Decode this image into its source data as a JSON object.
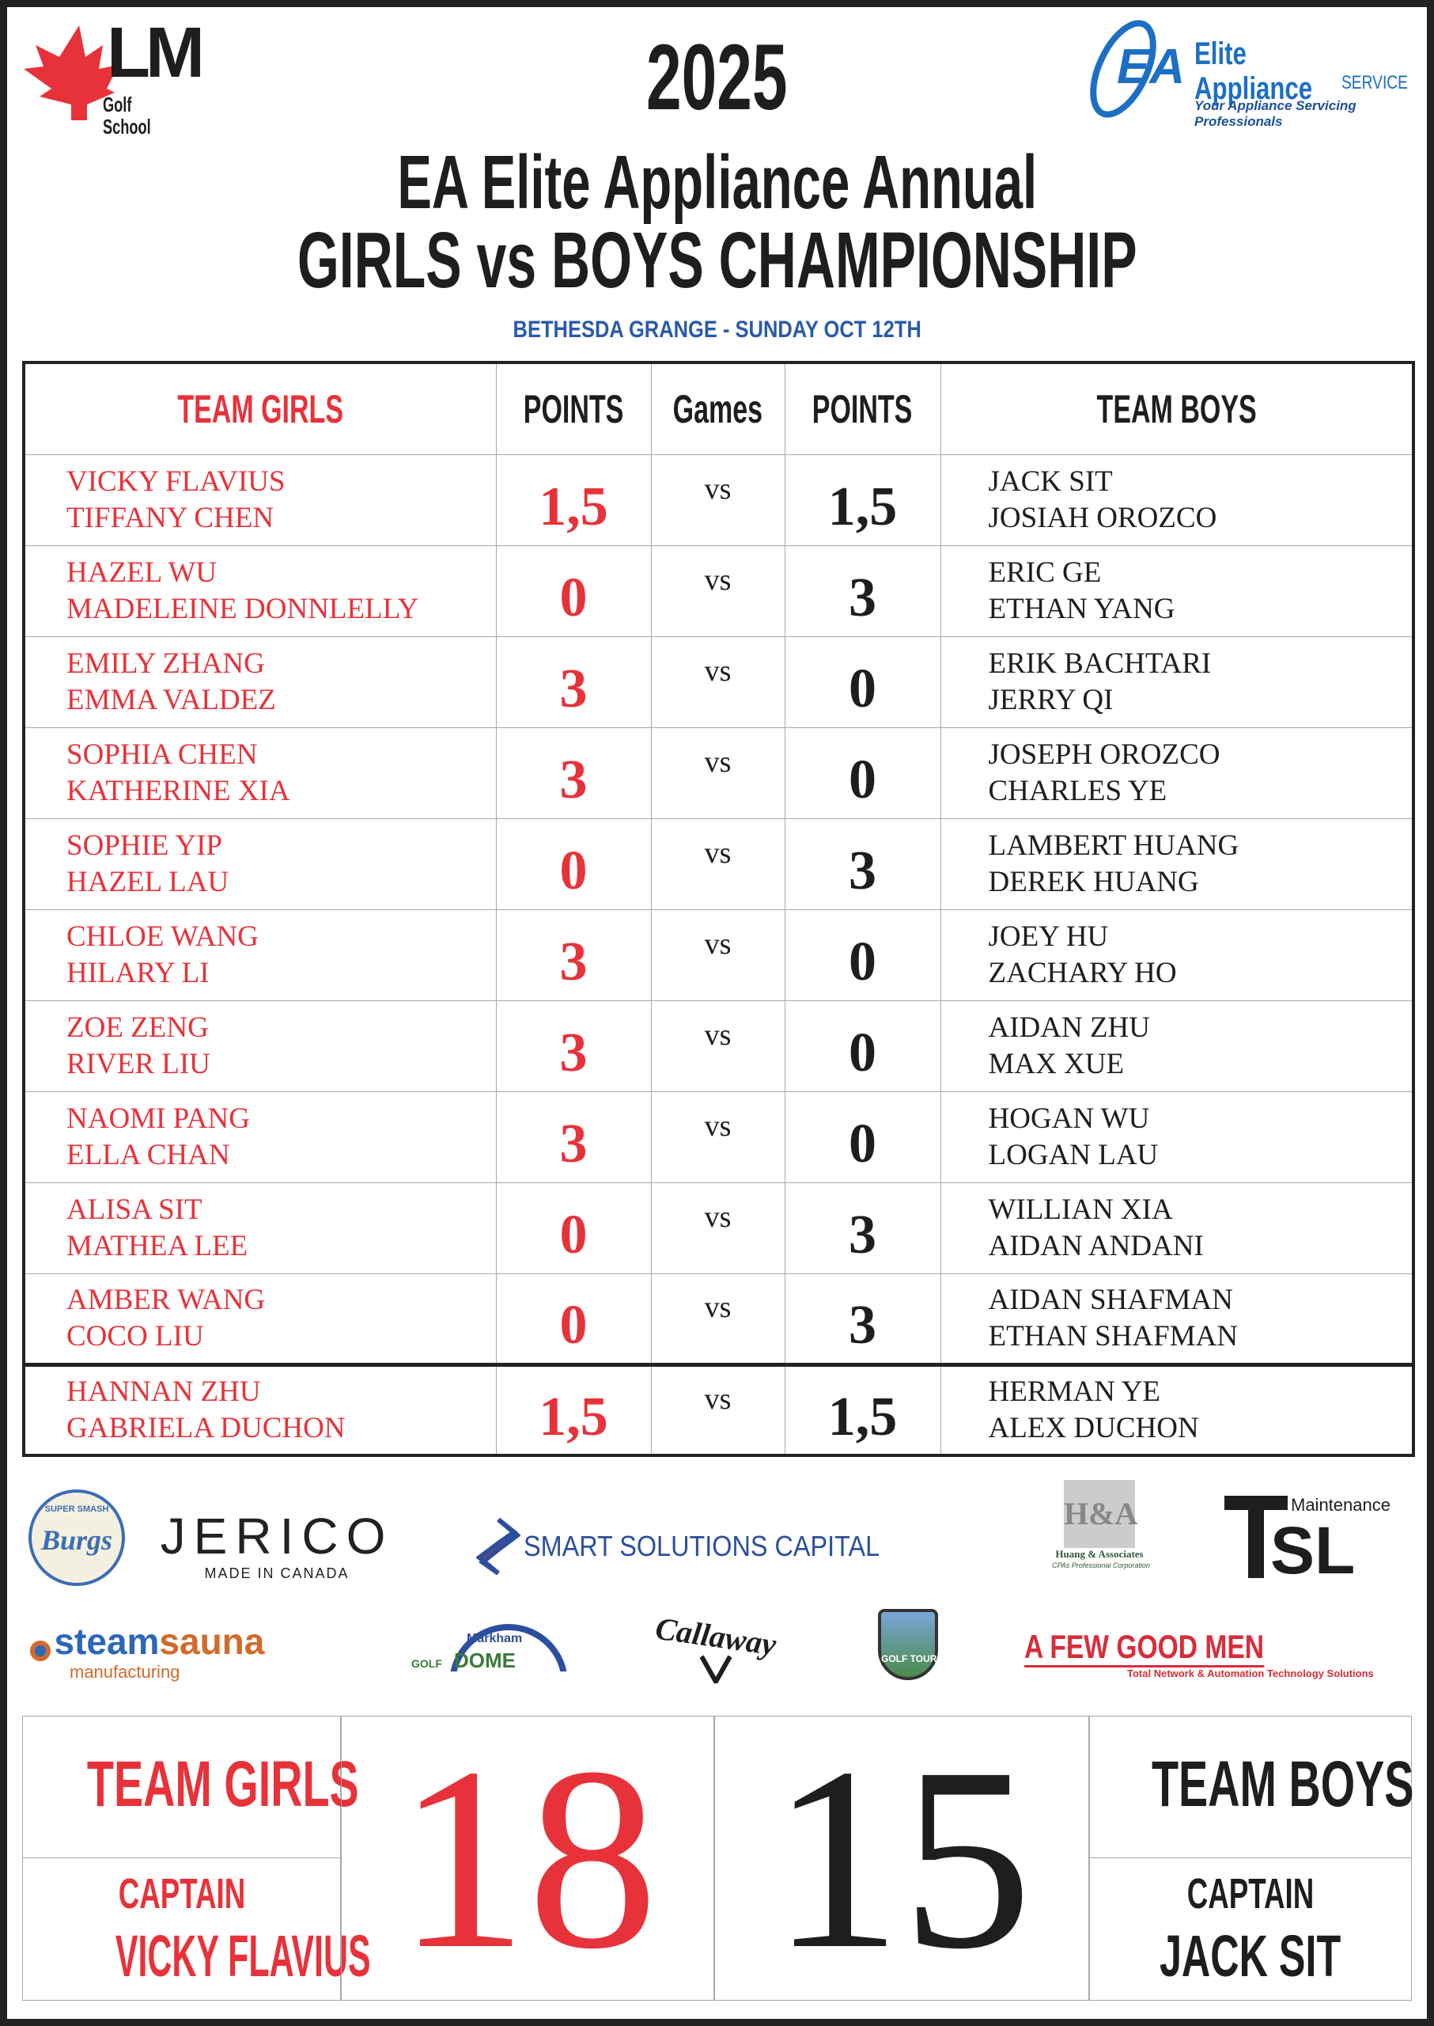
{
  "header": {
    "year": "2025",
    "title_line1": "EA Elite Appliance Annual",
    "title_line2": "GIRLS vs BOYS CHAMPIONSHIP",
    "subtitle": "BETHESDA GRANGE - SUNDAY OCT 12TH",
    "logo_left": {
      "mark": "LM",
      "text": "Golf School"
    },
    "logo_right": {
      "mark": "EA",
      "name": "Elite Appliance",
      "service": "SERVICE",
      "tagline": "Your Appliance Servicing Professionals"
    }
  },
  "colors": {
    "girls": "#e8323a",
    "boys": "#1e1e1e",
    "subtitle": "#2a5aa8"
  },
  "table": {
    "headers": [
      "TEAM GIRLS",
      "POINTS",
      "Games",
      "POINTS",
      "TEAM BOYS"
    ],
    "rows": [
      {
        "girls": [
          "VICKY FLAVIUS",
          "TIFFANY CHEN"
        ],
        "gp": "1,5",
        "vs": "vs",
        "bp": "1,5",
        "boys": [
          "JACK SIT",
          "JOSIAH OROZCO"
        ]
      },
      {
        "girls": [
          "HAZEL WU",
          "MADELEINE DONNLELLY"
        ],
        "gp": "0",
        "vs": "vs",
        "bp": "3",
        "boys": [
          "ERIC GE",
          "ETHAN YANG"
        ]
      },
      {
        "girls": [
          "EMILY ZHANG",
          "EMMA VALDEZ"
        ],
        "gp": "3",
        "vs": "vs",
        "bp": "0",
        "boys": [
          "ERIK BACHTARI",
          "JERRY QI"
        ]
      },
      {
        "girls": [
          "SOPHIA CHEN",
          "KATHERINE XIA"
        ],
        "gp": "3",
        "vs": "vs",
        "bp": "0",
        "boys": [
          "JOSEPH OROZCO",
          "CHARLES YE"
        ]
      },
      {
        "girls": [
          "SOPHIE YIP",
          "HAZEL LAU"
        ],
        "gp": "0",
        "vs": "vs",
        "bp": "3",
        "boys": [
          "LAMBERT HUANG",
          "DEREK HUANG"
        ]
      },
      {
        "girls": [
          "CHLOE WANG",
          "HILARY LI"
        ],
        "gp": "3",
        "vs": "vs",
        "bp": "0",
        "boys": [
          "JOEY HU",
          "ZACHARY HO"
        ]
      },
      {
        "girls": [
          "ZOE ZENG",
          "RIVER LIU"
        ],
        "gp": "3",
        "vs": "vs",
        "bp": "0",
        "boys": [
          "AIDAN ZHU",
          "MAX XUE"
        ]
      },
      {
        "girls": [
          "NAOMI PANG",
          "ELLA CHAN"
        ],
        "gp": "3",
        "vs": "vs",
        "bp": "0",
        "boys": [
          "HOGAN WU",
          "LOGAN LAU"
        ]
      },
      {
        "girls": [
          "ALISA SIT",
          "MATHEA LEE"
        ],
        "gp": "0",
        "vs": "vs",
        "bp": "3",
        "boys": [
          "WILLIAN XIA",
          "AIDAN ANDANI"
        ]
      },
      {
        "girls": [
          "AMBER WANG",
          "COCO LIU"
        ],
        "gp": "0",
        "vs": "vs",
        "bp": "3",
        "boys": [
          "AIDAN SHAFMAN",
          "ETHAN SHAFMAN"
        ]
      },
      {
        "girls": [
          "HANNAN ZHU",
          "GABRIELA DUCHON"
        ],
        "gp": "1,5",
        "vs": "vs",
        "bp": "1,5",
        "boys": [
          "HERMAN YE",
          "ALEX DUCHON"
        ]
      }
    ]
  },
  "sponsors": {
    "burgs": "Burgs",
    "burgs_top": "SUPER SMASH",
    "jerico": "JERICO",
    "jerico_sub": "MADE IN CANADA",
    "smart": "SMART SOLUTIONS CAPITAL",
    "ha": "H&A",
    "ha_name": "Huang & Associates",
    "ha_sub": "CPAs Professional Corporation",
    "tsl": "SL",
    "tsl_sub": "Maintenance",
    "steam1": "steam",
    "steam2": "sauna",
    "steam_sub": "manufacturing",
    "dome_top": "Markham",
    "dome_golf": "GOLF",
    "dome": "DOME",
    "callaway": "Callaway",
    "lm_tour": "GOLF TOUR",
    "afgm": "A FEW GOOD MEN",
    "afgm_sub": "Total Network & Automation Technology Solutions"
  },
  "totals": {
    "girls_label": "TEAM GIRLS",
    "girls_score": "18",
    "girls_captain_label": "CAPTAIN",
    "girls_captain": "VICKY FLAVIUS",
    "boys_label": "TEAM BOYS",
    "boys_score": "15",
    "boys_captain_label": "CAPTAIN",
    "boys_captain": "JACK SIT"
  }
}
